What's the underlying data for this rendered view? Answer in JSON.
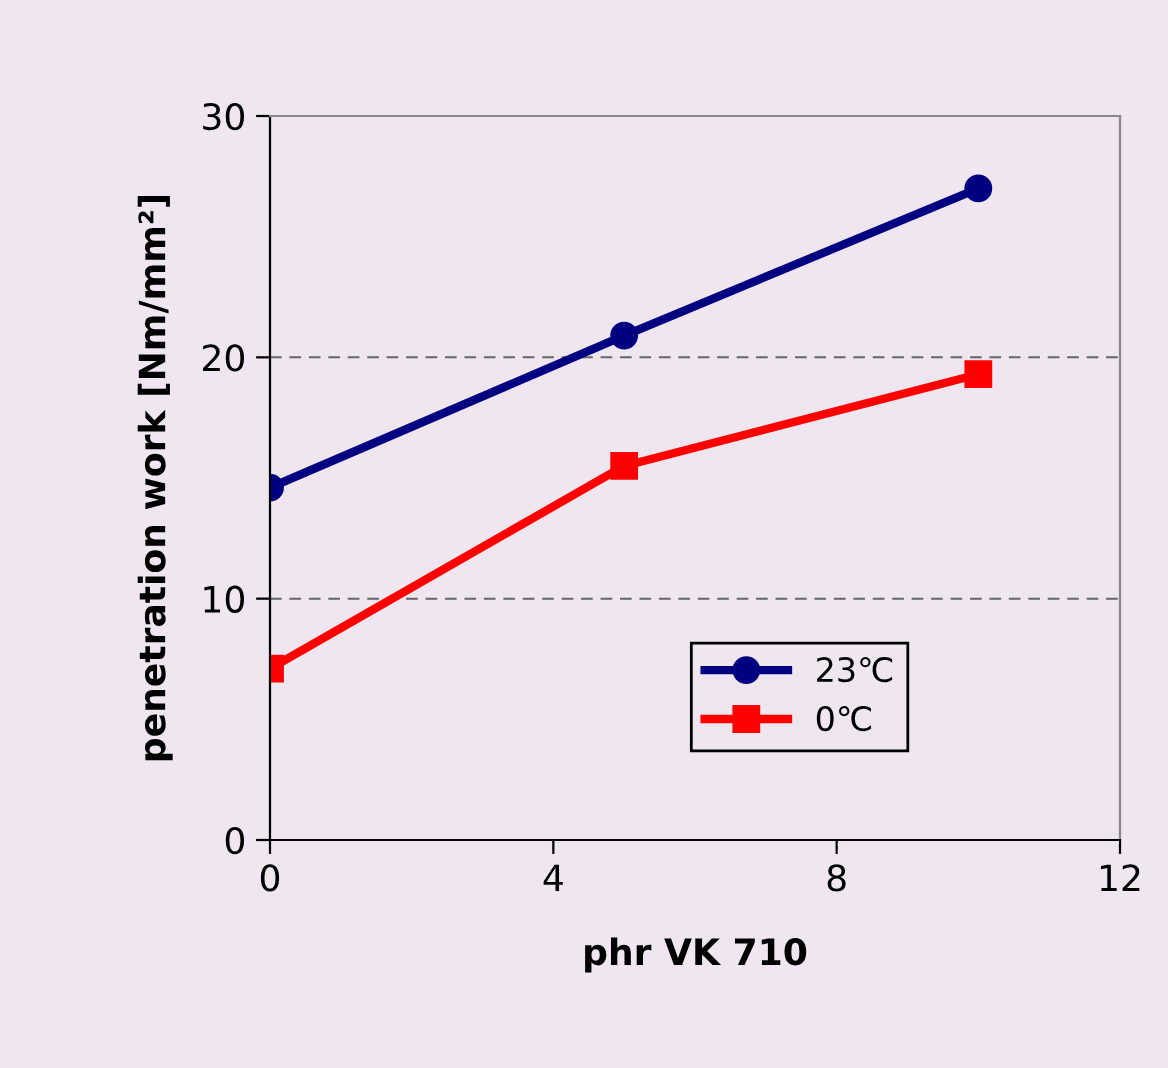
{
  "chart_data": {
    "type": "line",
    "xlabel": "phr VK 710",
    "ylabel": "penetration work [Nm/mm²]",
    "x": [
      0,
      5,
      10
    ],
    "series": [
      {
        "name": "23℃",
        "color": "#000080",
        "values": [
          14.6,
          20.9,
          27.0
        ],
        "marker": "circle"
      },
      {
        "name": "0℃",
        "color": "#ff0000",
        "values": [
          7.1,
          15.5,
          19.3
        ],
        "marker": "square"
      }
    ],
    "xlim": [
      0,
      12
    ],
    "xticks": [
      0,
      4,
      8,
      12
    ],
    "ylim": [
      0,
      30
    ],
    "yticks": [
      0,
      10,
      20,
      30
    ],
    "grid": "y",
    "legend": "bottom right",
    "line_style": "solid"
  }
}
